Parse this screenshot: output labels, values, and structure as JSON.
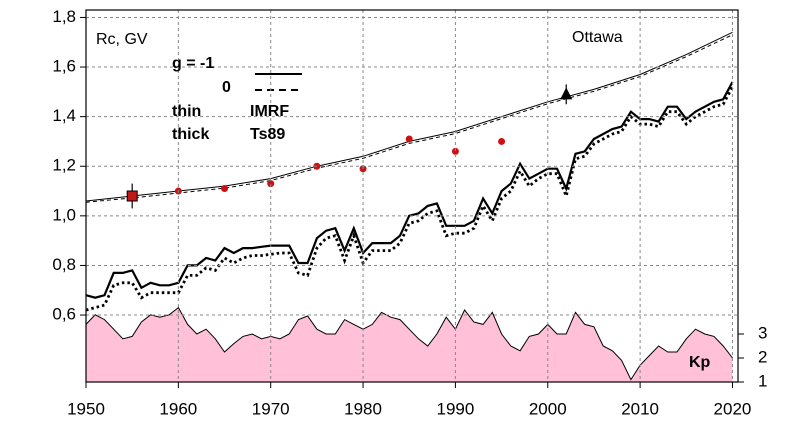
{
  "chart_data": {
    "type": "line",
    "annotations": [
      "Rc, GV",
      "Ottawa",
      "g  = -1",
      "0",
      "thin",
      "IMRF",
      "thick",
      "Ts89",
      "Kp"
    ],
    "xlim": [
      1950,
      2020.6
    ],
    "xticks": [
      1950,
      1960,
      1970,
      1980,
      1990,
      2000,
      2010,
      2020
    ],
    "ylim": [
      0.33,
      1.83
    ],
    "yticks": [
      {
        "value": 0.6,
        "label": "0,6"
      },
      {
        "value": 0.8,
        "label": "0,8"
      },
      {
        "value": 1.0,
        "label": "1,0"
      },
      {
        "value": 1.2,
        "label": "1,2"
      },
      {
        "value": 1.4,
        "label": "1,4"
      },
      {
        "value": 1.6,
        "label": "1,6"
      },
      {
        "value": 1.8,
        "label": "1,8"
      }
    ],
    "y2lim": [
      1,
      16.5
    ],
    "y2ticks": [
      1,
      2,
      3
    ],
    "grid": true,
    "series": [
      {
        "style": "area",
        "axis": "y2",
        "color": "#ffc0d8",
        "x": [
          1950,
          1951,
          1952,
          1953,
          1954,
          1955,
          1956,
          1957,
          1958,
          1959,
          1960,
          1961,
          1962,
          1963,
          1964,
          1965,
          1966,
          1967,
          1968,
          1969,
          1970,
          1971,
          1972,
          1973,
          1974,
          1975,
          1976,
          1977,
          1978,
          1979,
          1980,
          1981,
          1982,
          1983,
          1984,
          1985,
          1986,
          1987,
          1988,
          1989,
          1990,
          1991,
          1992,
          1993,
          1994,
          1995,
          1996,
          1997,
          1998,
          1999,
          2000,
          2001,
          2002,
          2003,
          2004,
          2005,
          2006,
          2007,
          2008,
          2009,
          2010,
          2011,
          2012,
          2013,
          2014,
          2015,
          2016,
          2017,
          2018,
          2019,
          2020
        ],
        "values": [
          3.4,
          3.8,
          3.6,
          3.2,
          2.8,
          2.9,
          3.5,
          3.8,
          3.7,
          3.8,
          4.1,
          3.4,
          3.0,
          3.2,
          2.8,
          2.25,
          2.6,
          2.9,
          3.0,
          2.8,
          2.9,
          2.8,
          3.0,
          3.6,
          3.75,
          3.2,
          3.0,
          3.0,
          3.6,
          3.4,
          3.2,
          3.4,
          3.9,
          3.7,
          3.6,
          3.2,
          2.8,
          2.5,
          3.0,
          3.7,
          3.2,
          4.0,
          3.5,
          3.4,
          3.9,
          3.0,
          2.5,
          2.3,
          2.9,
          3.0,
          3.4,
          3.0,
          3.0,
          3.9,
          3.4,
          3.3,
          2.5,
          2.3,
          1.9,
          1.1,
          1.7,
          2.1,
          2.5,
          2.25,
          2.25,
          2.8,
          3.2,
          3.0,
          2.9,
          2.5,
          2.0
        ]
      },
      {
        "style": "solid-thin",
        "color": "#000000",
        "x": [
          1950,
          1955,
          1960,
          1965,
          1970,
          1975,
          1980,
          1985,
          1990,
          1995,
          2000,
          2005,
          2010,
          2015,
          2020
        ],
        "values": [
          1.06,
          1.08,
          1.1,
          1.12,
          1.15,
          1.2,
          1.24,
          1.3,
          1.34,
          1.4,
          1.46,
          1.51,
          1.57,
          1.65,
          1.74
        ]
      },
      {
        "style": "dashed-thin",
        "color": "#000000",
        "x": [
          1950,
          1955,
          1960,
          1965,
          1970,
          1975,
          1980,
          1985,
          1990,
          1995,
          2000,
          2005,
          2010,
          2015,
          2020
        ],
        "values": [
          1.055,
          1.072,
          1.092,
          1.112,
          1.142,
          1.192,
          1.232,
          1.292,
          1.332,
          1.392,
          1.452,
          1.502,
          1.562,
          1.642,
          1.73
        ]
      },
      {
        "style": "solid-thick",
        "color": "#000000",
        "x": [
          1950,
          1951,
          1952,
          1953,
          1954,
          1955,
          1956,
          1957,
          1958,
          1959,
          1960,
          1961,
          1962,
          1963,
          1964,
          1965,
          1966,
          1967,
          1968,
          1969,
          1970,
          1971,
          1972,
          1973,
          1974,
          1975,
          1976,
          1977,
          1978,
          1979,
          1980,
          1981,
          1982,
          1983,
          1984,
          1985,
          1986,
          1987,
          1988,
          1989,
          1990,
          1991,
          1992,
          1993,
          1994,
          1995,
          1996,
          1997,
          1998,
          1999,
          2000,
          2001,
          2002,
          2003,
          2004,
          2005,
          2006,
          2007,
          2008,
          2009,
          2010,
          2011,
          2012,
          2013,
          2014,
          2015,
          2016,
          2017,
          2018,
          2019,
          2020
        ],
        "values": [
          0.68,
          0.67,
          0.68,
          0.77,
          0.77,
          0.78,
          0.71,
          0.73,
          0.72,
          0.72,
          0.73,
          0.8,
          0.8,
          0.83,
          0.82,
          0.87,
          0.85,
          0.87,
          0.87,
          0.875,
          0.88,
          0.88,
          0.88,
          0.81,
          0.81,
          0.91,
          0.94,
          0.95,
          0.86,
          0.95,
          0.85,
          0.89,
          0.89,
          0.89,
          0.92,
          1.0,
          1.01,
          1.04,
          1.05,
          0.96,
          0.96,
          0.96,
          0.98,
          1.07,
          1.01,
          1.1,
          1.13,
          1.21,
          1.15,
          1.17,
          1.19,
          1.19,
          1.11,
          1.25,
          1.26,
          1.31,
          1.33,
          1.35,
          1.36,
          1.42,
          1.39,
          1.39,
          1.38,
          1.44,
          1.44,
          1.39,
          1.42,
          1.44,
          1.46,
          1.47,
          1.54
        ]
      },
      {
        "style": "dotted-thick",
        "color": "#000000",
        "x": [
          1950,
          1951,
          1952,
          1953,
          1954,
          1955,
          1956,
          1957,
          1958,
          1959,
          1960,
          1961,
          1962,
          1963,
          1964,
          1965,
          1966,
          1967,
          1968,
          1969,
          1970,
          1971,
          1972,
          1973,
          1974,
          1975,
          1976,
          1977,
          1978,
          1979,
          1980,
          1981,
          1982,
          1983,
          1984,
          1985,
          1986,
          1987,
          1988,
          1989,
          1990,
          1991,
          1992,
          1993,
          1994,
          1995,
          1996,
          1997,
          1998,
          1999,
          2000,
          2001,
          2002,
          2003,
          2004,
          2005,
          2006,
          2007,
          2008,
          2009,
          2010,
          2011,
          2012,
          2013,
          2014,
          2015,
          2016,
          2017,
          2018,
          2019,
          2020
        ],
        "values": [
          0.62,
          0.63,
          0.64,
          0.72,
          0.73,
          0.73,
          0.67,
          0.69,
          0.69,
          0.69,
          0.69,
          0.76,
          0.76,
          0.79,
          0.78,
          0.83,
          0.81,
          0.83,
          0.84,
          0.84,
          0.845,
          0.85,
          0.85,
          0.77,
          0.76,
          0.87,
          0.91,
          0.92,
          0.82,
          0.92,
          0.81,
          0.86,
          0.86,
          0.86,
          0.89,
          0.97,
          0.98,
          1.01,
          1.02,
          0.92,
          0.93,
          0.93,
          0.95,
          1.04,
          0.98,
          1.07,
          1.1,
          1.18,
          1.12,
          1.15,
          1.17,
          1.17,
          1.08,
          1.23,
          1.24,
          1.29,
          1.31,
          1.33,
          1.34,
          1.4,
          1.37,
          1.37,
          1.36,
          1.42,
          1.42,
          1.37,
          1.4,
          1.42,
          1.44,
          1.45,
          1.52
        ]
      },
      {
        "style": "points",
        "color": "#d01010",
        "x": [
          1960,
          1965,
          1970,
          1975,
          1980,
          1985,
          1990,
          1995
        ],
        "values": [
          1.1,
          1.11,
          1.13,
          1.2,
          1.19,
          1.31,
          1.26,
          1.3
        ]
      },
      {
        "style": "square",
        "color": "#c01818",
        "x": [
          1955
        ],
        "values": [
          1.08
        ],
        "errors": [
          0.05
        ]
      },
      {
        "style": "triangle",
        "color": "#000000",
        "x": [
          2002
        ],
        "values": [
          1.49
        ],
        "errors": [
          0.04
        ]
      }
    ]
  }
}
